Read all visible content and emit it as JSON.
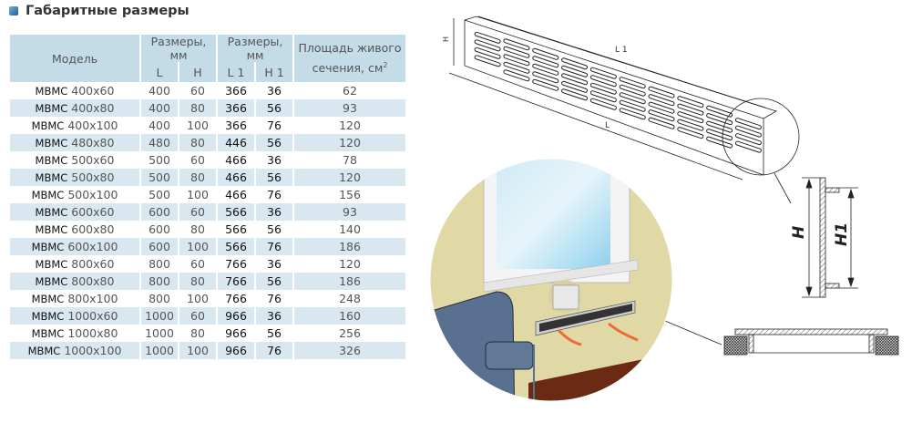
{
  "title": "Габаритные размеры",
  "table": {
    "headers": {
      "model": "Модель",
      "dims_group_1": "Размеры, мм",
      "dims_group_2": "Размеры, мм",
      "L": "L",
      "H": "H",
      "L1": "L 1",
      "H1": "H 1",
      "area": "Площадь живого сечения, см",
      "area_unit_sup": "2"
    },
    "rows": [
      {
        "prefix": "МВМС",
        "size": "400x60",
        "L": "400",
        "H": "60",
        "L1": "366",
        "H1": "36",
        "area": "62"
      },
      {
        "prefix": "МВМС",
        "size": "400x80",
        "L": "400",
        "H": "80",
        "L1": "366",
        "H1": "56",
        "area": "93"
      },
      {
        "prefix": "МВМС",
        "size": "400x100",
        "L": "400",
        "H": "100",
        "L1": "366",
        "H1": "76",
        "area": "120"
      },
      {
        "prefix": "МВМС",
        "size": "480x80",
        "L": "480",
        "H": "80",
        "L1": "446",
        "H1": "56",
        "area": "120"
      },
      {
        "prefix": "МВМС",
        "size": "500x60",
        "L": "500",
        "H": "60",
        "L1": "466",
        "H1": "36",
        "area": "78"
      },
      {
        "prefix": "МВМС",
        "size": "500x80",
        "L": "500",
        "H": "80",
        "L1": "466",
        "H1": "56",
        "area": "120"
      },
      {
        "prefix": "МВМС",
        "size": "500x100",
        "L": "500",
        "H": "100",
        "L1": "466",
        "H1": "76",
        "area": "156"
      },
      {
        "prefix": "МВМС",
        "size": "600x60",
        "L": "600",
        "H": "60",
        "L1": "566",
        "H1": "36",
        "area": "93"
      },
      {
        "prefix": "МВМС",
        "size": "600x80",
        "L": "600",
        "H": "80",
        "L1": "566",
        "H1": "56",
        "area": "140"
      },
      {
        "prefix": "МВМС",
        "size": "600x100",
        "L": "600",
        "H": "100",
        "L1": "566",
        "H1": "76",
        "area": "186"
      },
      {
        "prefix": "МВМС",
        "size": "800x60",
        "L": "800",
        "H": "60",
        "L1": "766",
        "H1": "36",
        "area": "120"
      },
      {
        "prefix": "МВМС",
        "size": "800x80",
        "L": "800",
        "H": "80",
        "L1": "766",
        "H1": "56",
        "area": "186"
      },
      {
        "prefix": "МВМС",
        "size": "800x100",
        "L": "800",
        "H": "100",
        "L1": "766",
        "H1": "76",
        "area": "248"
      },
      {
        "prefix": "МВМС",
        "size": "1000x60",
        "L": "1000",
        "H": "60",
        "L1": "966",
        "H1": "36",
        "area": "160"
      },
      {
        "prefix": "МВМС",
        "size": "1000x80",
        "L": "1000",
        "H": "80",
        "L1": "966",
        "H1": "56",
        "area": "256"
      },
      {
        "prefix": "МВМС",
        "size": "1000x100",
        "L": "1000",
        "H": "100",
        "L1": "966",
        "H1": "76",
        "area": "326"
      }
    ]
  },
  "drawing": {
    "label_H_small": "H",
    "label_L1": "L 1",
    "label_L": "L",
    "label_H": "H",
    "label_H1": "H1"
  },
  "colors": {
    "header_bg": "#c4dce8",
    "stripe_bg": "#d8e7f0",
    "wall": "#e0d9a6",
    "sofa": "#5a7091",
    "floor": "#6b2a14",
    "airflow": "#f06a35"
  }
}
